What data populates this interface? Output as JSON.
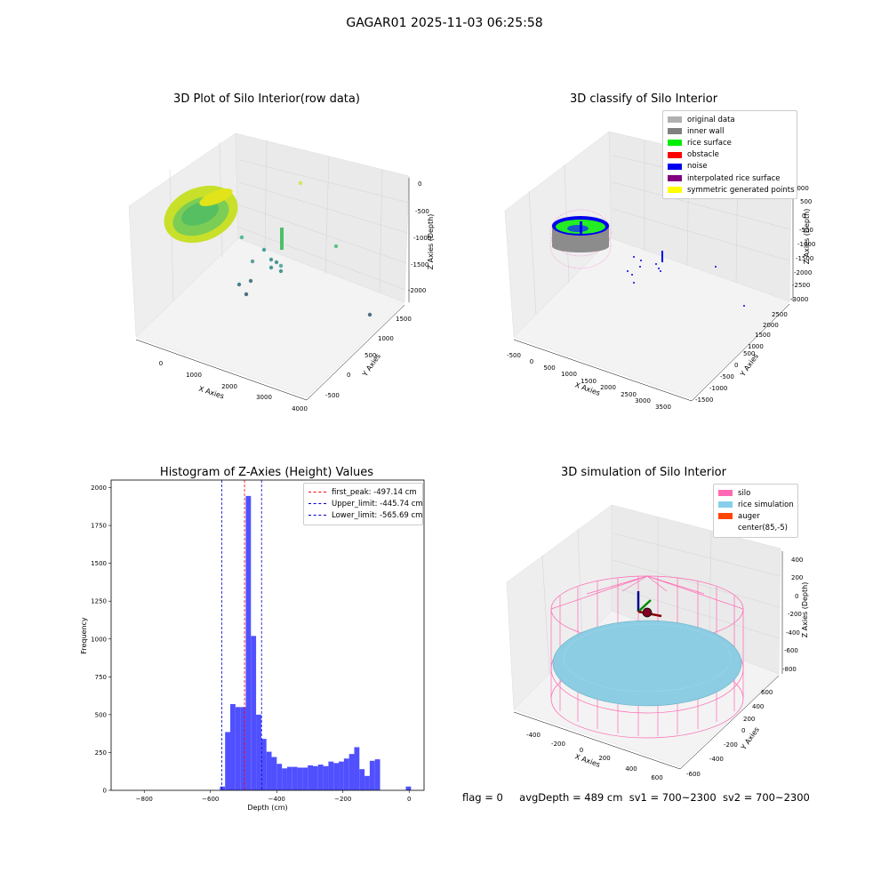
{
  "suptitle": "GAGAR01 2025-11-03 06:25:58",
  "stats": {
    "flag": "flag = 0",
    "avg": "avgDepth = 489 cm",
    "sv1": "sv1 = 700~2300",
    "sv2": "sv2 = 700~2300"
  },
  "chart_data": [
    {
      "type": "scatter",
      "projection": "3d",
      "title": "3D Plot of Silo Interior(row data)",
      "xlabel": "X Axies",
      "ylabel": "Y Axies",
      "zlabel": "Z Axies (Depth)",
      "x_ticks": [
        "0",
        "1000",
        "2000",
        "3000",
        "4000"
      ],
      "y_ticks": [
        "-500",
        "0",
        "500",
        "1000",
        "1500"
      ],
      "z_ticks": [
        "0",
        "-500",
        "-1000",
        "-1500",
        "-2000"
      ],
      "colormap": "viridis",
      "grid": true
    },
    {
      "type": "scatter",
      "projection": "3d",
      "title": "3D classify of Silo Interior",
      "xlabel": "X Axies",
      "ylabel": "Y Axies",
      "zlabel": "Z Axies (Depth)",
      "x_ticks": [
        "-500",
        "0",
        "500",
        "1000",
        "1500",
        "2000",
        "2500",
        "3000",
        "3500"
      ],
      "y_ticks": [
        "-1500",
        "-1000",
        "-500",
        "0",
        "500",
        "1000",
        "1500",
        "2000",
        "2500"
      ],
      "z_ticks": [
        "1000",
        "500",
        "0",
        "-500",
        "-1000",
        "-1500",
        "-2000",
        "-2500",
        "-3000"
      ],
      "legend": [
        {
          "label": "original data",
          "color": "#b0b0b0"
        },
        {
          "label": "inner wall",
          "color": "#808080"
        },
        {
          "label": "rice surface",
          "color": "#00ee00"
        },
        {
          "label": "obstacle",
          "color": "#ff0000"
        },
        {
          "label": "noise",
          "color": "#0000ee"
        },
        {
          "label": "interpolated rice surface",
          "color": "#800080"
        },
        {
          "label": "symmetric generated points",
          "color": "#ffff00"
        }
      ],
      "legend_position": "top-right",
      "grid": true
    },
    {
      "type": "bar",
      "title": "Histogram of Z-Axies (Height) Values",
      "xlabel": "Depth (cm)",
      "ylabel": "Frequency",
      "xlim": [
        -900,
        45
      ],
      "ylim": [
        0,
        2050
      ],
      "x_ticks": [
        -800,
        -600,
        -400,
        -200,
        0
      ],
      "y_ticks": [
        0,
        250,
        500,
        750,
        1000,
        1250,
        1500,
        1750,
        2000
      ],
      "bin_width": 15.6,
      "bins": [
        {
          "x": -571.4,
          "y": 25
        },
        {
          "x": -555.8,
          "y": 385
        },
        {
          "x": -540.2,
          "y": 570
        },
        {
          "x": -524.6,
          "y": 550
        },
        {
          "x": -509.0,
          "y": 550
        },
        {
          "x": -493.4,
          "y": 1945
        },
        {
          "x": -477.8,
          "y": 1020
        },
        {
          "x": -462.2,
          "y": 500
        },
        {
          "x": -446.6,
          "y": 340
        },
        {
          "x": -431.0,
          "y": 255
        },
        {
          "x": -415.4,
          "y": 220
        },
        {
          "x": -399.8,
          "y": 175
        },
        {
          "x": -384.2,
          "y": 145
        },
        {
          "x": -368.6,
          "y": 155
        },
        {
          "x": -353.0,
          "y": 155
        },
        {
          "x": -337.4,
          "y": 150
        },
        {
          "x": -321.8,
          "y": 150
        },
        {
          "x": -306.2,
          "y": 165
        },
        {
          "x": -290.6,
          "y": 160
        },
        {
          "x": -275.0,
          "y": 170
        },
        {
          "x": -259.4,
          "y": 160
        },
        {
          "x": -243.8,
          "y": 190
        },
        {
          "x": -228.2,
          "y": 180
        },
        {
          "x": -212.6,
          "y": 190
        },
        {
          "x": -197.0,
          "y": 210
        },
        {
          "x": -181.4,
          "y": 240
        },
        {
          "x": -165.8,
          "y": 285
        },
        {
          "x": -150.2,
          "y": 140
        },
        {
          "x": -134.6,
          "y": 95
        },
        {
          "x": -119.0,
          "y": 195
        },
        {
          "x": -103.4,
          "y": 205
        },
        {
          "x": -10.0,
          "y": 25
        }
      ],
      "vlines": [
        {
          "label": "first_peak: -497.14 cm",
          "x": -497.14,
          "color": "#ff0000"
        },
        {
          "label": "Upper_limit: -445.74 cm",
          "x": -445.74,
          "color": "#0000cc"
        },
        {
          "label": "Lower_limit: -565.69 cm",
          "x": -565.69,
          "color": "#0000cc"
        }
      ],
      "bar_color": "#5050ff",
      "legend_position": "top-right"
    },
    {
      "type": "scatter",
      "projection": "3d",
      "title": "3D simulation of Silo Interior",
      "xlabel": "X Axies",
      "ylabel": "Y Axies",
      "zlabel": "Z Axies (Depth)",
      "x_ticks": [
        "-400",
        "-200",
        "0",
        "200",
        "400",
        "600"
      ],
      "y_ticks": [
        "-600",
        "-400",
        "-200",
        "0",
        "200",
        "400",
        "600"
      ],
      "z_ticks": [
        "400",
        "200",
        "0",
        "-200",
        "-400",
        "-600",
        "-800"
      ],
      "legend": [
        {
          "label": "silo",
          "color": "#ff69b4"
        },
        {
          "label": "rice simulation",
          "color": "#87ceeb"
        },
        {
          "label": "auger",
          "color": "#ff4500"
        },
        {
          "label": "center(85,-5)",
          "color": ""
        }
      ],
      "legend_position": "top-right",
      "grid": true
    }
  ]
}
